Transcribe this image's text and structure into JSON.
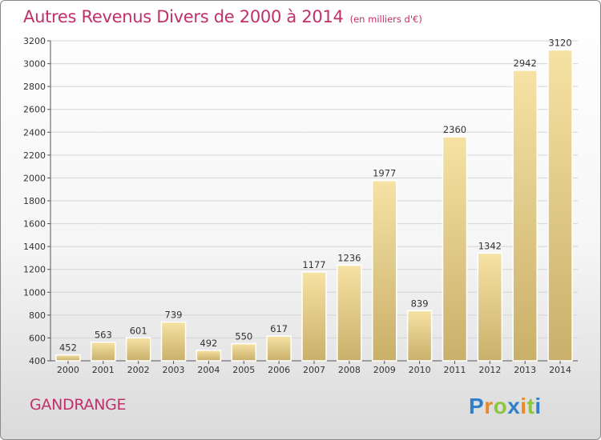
{
  "title": "Autres Revenus Divers de 2000 à 2014",
  "subtitle": "(en milliers d'€)",
  "location": "GANDRANGE",
  "logo_text": "Proxiti",
  "colors": {
    "title": "#c0306a",
    "bar_light": "#f6e2a4",
    "bar_dark": "#c9b06a",
    "grid": "#d4d4d4",
    "axis": "#555555"
  },
  "chart_data": {
    "type": "bar",
    "categories": [
      "2000",
      "2001",
      "2002",
      "2003",
      "2004",
      "2005",
      "2006",
      "2007",
      "2008",
      "2009",
      "2010",
      "2011",
      "2012",
      "2013",
      "2014"
    ],
    "values": [
      452,
      563,
      601,
      739,
      492,
      550,
      617,
      1177,
      1236,
      1977,
      839,
      2360,
      1342,
      2942,
      3120
    ],
    "ylim": [
      400,
      3200
    ],
    "yticks": [
      400,
      600,
      800,
      1000,
      1200,
      1400,
      1600,
      1800,
      2000,
      2200,
      2400,
      2600,
      2800,
      3000,
      3200
    ],
    "grid": true,
    "data_labels": true
  }
}
